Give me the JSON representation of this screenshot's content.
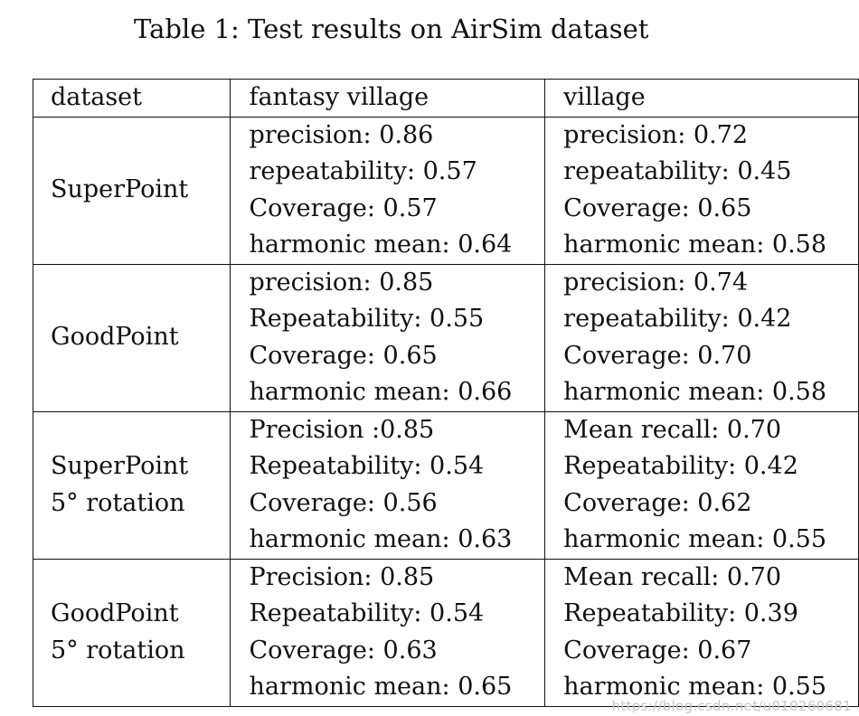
{
  "caption": "Table 1: Test results on AirSim dataset",
  "table": {
    "headers": [
      "dataset",
      "fantasy village",
      "village"
    ],
    "rows": [
      {
        "method": [
          "SuperPoint"
        ],
        "fantasy_village": [
          "precision: 0.86",
          "repeatability: 0.57",
          "Coverage: 0.57",
          "harmonic mean: 0.64"
        ],
        "village": [
          "precision: 0.72",
          "repeatability: 0.45",
          "Coverage: 0.65",
          "harmonic mean: 0.58"
        ]
      },
      {
        "method": [
          "GoodPoint"
        ],
        "fantasy_village": [
          "precision: 0.85",
          "Repeatability: 0.55",
          "Coverage: 0.65",
          "harmonic mean: 0.66"
        ],
        "village": [
          "precision: 0.74",
          "repeatability: 0.42",
          "Coverage: 0.70",
          "harmonic mean: 0.58"
        ]
      },
      {
        "method": [
          "SuperPoint",
          "5° rotation"
        ],
        "fantasy_village": [
          "Precision :0.85",
          "Repeatability: 0.54",
          "Coverage: 0.56",
          "harmonic mean: 0.63"
        ],
        "village": [
          "Mean recall: 0.70",
          "Repeatability: 0.42",
          "Coverage: 0.62",
          "harmonic mean: 0.55"
        ]
      },
      {
        "method": [
          "GoodPoint",
          "5° rotation"
        ],
        "fantasy_village": [
          "Precision: 0.85",
          "Repeatability: 0.54",
          "Coverage: 0.63",
          "harmonic mean: 0.65"
        ],
        "village": [
          "Mean recall: 0.70",
          "Repeatability: 0.39",
          "Coverage: 0.67",
          "harmonic mean: 0.55"
        ]
      }
    ]
  },
  "watermark": "https://blog.csdn.net/u010260681"
}
